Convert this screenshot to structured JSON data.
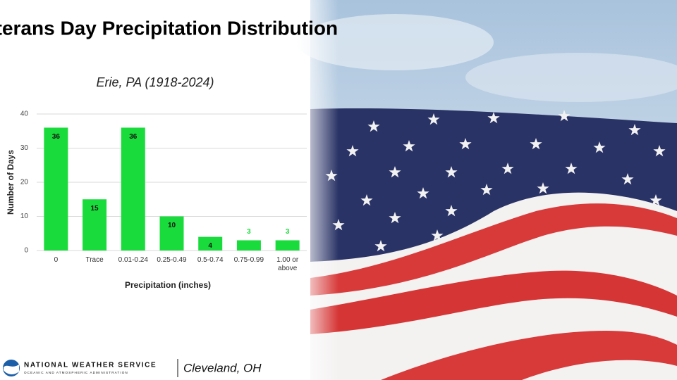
{
  "chart_data": {
    "type": "bar",
    "title": "Veterans Day Precipitation Distribution",
    "subtitle": "Erie, PA (1918-2024)",
    "x_label": "Precipitation (inches)",
    "y_label": "Number of Days",
    "categories": [
      "0",
      "Trace",
      "0.01-0.24",
      "0.25-0.49",
      "0.5-0.74",
      "0.75-0.99",
      "1.00 or above"
    ],
    "values": [
      36,
      15,
      36,
      10,
      4,
      3,
      3
    ],
    "color": "#19dc3c",
    "ylim": [
      0,
      40
    ],
    "yticks": [
      0,
      10,
      20,
      30,
      40
    ],
    "grid": true
  },
  "footer": {
    "agency": "NATIONAL WEATHER SERVICE",
    "agency_sub": "OCEANIC AND ATMOSPHERIC ADMINISTRATION",
    "office": "Cleveland, OH"
  }
}
